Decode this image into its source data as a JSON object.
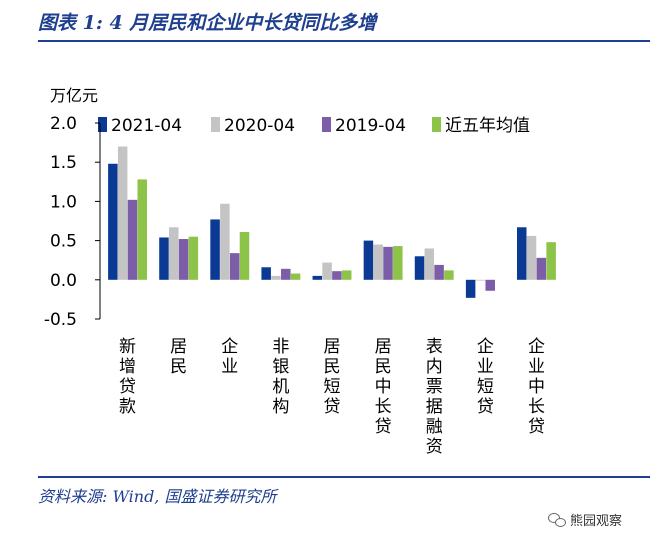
{
  "figure": {
    "title": "图表 1:  4 月居民和企业中长贷同比多增",
    "source": "资料来源: Wind, 国盛证券研究所",
    "watermark": "熊园观察"
  },
  "chart_data": {
    "type": "bar",
    "title": "",
    "unit_label": "万亿元",
    "ylim": [
      -0.5,
      2.0
    ],
    "yticks": [
      -0.5,
      0.0,
      0.5,
      1.0,
      1.5,
      2.0
    ],
    "ytick_labels": [
      "-0.5",
      "0.0",
      "0.5",
      "1.0",
      "1.5",
      "2.0"
    ],
    "grid": false,
    "legend_position": "top",
    "categories": [
      "新增贷款",
      "居民",
      "企业",
      "非银机构",
      "居民短贷",
      "居民中长贷",
      "表内票据融资",
      "企业短贷",
      "企业中长贷"
    ],
    "series": [
      {
        "name": "2021-04",
        "color": "#0b3a94",
        "values": [
          1.48,
          0.54,
          0.77,
          0.16,
          0.05,
          0.5,
          0.3,
          -0.23,
          0.67
        ]
      },
      {
        "name": "2020-04",
        "color": "#c4c4c4",
        "values": [
          1.7,
          0.67,
          0.97,
          0.05,
          0.22,
          0.45,
          0.4,
          -0.01,
          0.56
        ]
      },
      {
        "name": "2019-04",
        "color": "#7b5ea7",
        "values": [
          1.02,
          0.52,
          0.34,
          0.14,
          0.11,
          0.42,
          0.19,
          -0.14,
          0.28
        ]
      },
      {
        "name": "近五年均值",
        "color": "#8cc348",
        "values": [
          1.28,
          0.55,
          0.61,
          0.08,
          0.12,
          0.43,
          0.12,
          0.0,
          0.48
        ]
      }
    ]
  }
}
